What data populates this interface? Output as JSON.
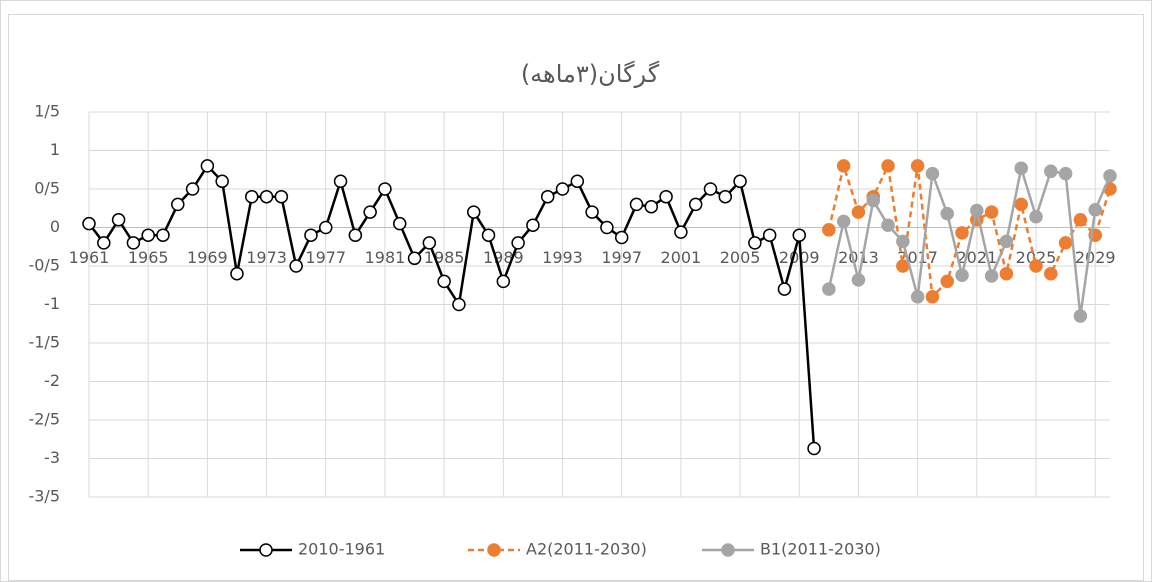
{
  "chart_data": {
    "type": "line",
    "title": "گرگان(۳ماهه)",
    "x": [
      1961,
      1962,
      1963,
      1964,
      1965,
      1966,
      1967,
      1968,
      1969,
      1970,
      1971,
      1972,
      1973,
      1974,
      1975,
      1976,
      1977,
      1978,
      1979,
      1980,
      1981,
      1982,
      1983,
      1984,
      1985,
      1986,
      1987,
      1988,
      1989,
      1990,
      1991,
      1992,
      1993,
      1994,
      1995,
      1996,
      1997,
      1998,
      1999,
      2000,
      2001,
      2002,
      2003,
      2004,
      2005,
      2006,
      2007,
      2008,
      2009,
      2010,
      2011,
      2012,
      2013,
      2014,
      2015,
      2016,
      2017,
      2018,
      2019,
      2020,
      2021,
      2022,
      2023,
      2024,
      2025,
      2026,
      2027,
      2028,
      2029,
      2030
    ],
    "series": [
      {
        "name": "2010-1961",
        "color": "#000000",
        "values": [
          0.05,
          -0.2,
          0.1,
          -0.2,
          -0.1,
          -0.1,
          0.3,
          0.5,
          0.8,
          0.6,
          -0.6,
          0.4,
          0.4,
          0.4,
          -0.5,
          -0.1,
          0,
          0.6,
          -0.1,
          0.2,
          0.5,
          0.05,
          -0.4,
          -0.2,
          -0.7,
          -1.0,
          0.2,
          -0.1,
          -0.7,
          -0.2,
          0.03,
          0.4,
          0.5,
          0.6,
          0.2,
          0,
          -0.13,
          0.3,
          0.27,
          0.4,
          -0.06,
          0.3,
          0.5,
          0.4,
          0.6,
          -0.2,
          -0.1,
          -0.8,
          -0.1,
          -2.87,
          null,
          null,
          null,
          null,
          null,
          null,
          null,
          null,
          null,
          null,
          null,
          null,
          null,
          null,
          null,
          null,
          null,
          null,
          null,
          null
        ]
      },
      {
        "name": "A2(2011-2030)",
        "color": "#ed7d31",
        "values": [
          null,
          null,
          null,
          null,
          null,
          null,
          null,
          null,
          null,
          null,
          null,
          null,
          null,
          null,
          null,
          null,
          null,
          null,
          null,
          null,
          null,
          null,
          null,
          null,
          null,
          null,
          null,
          null,
          null,
          null,
          null,
          null,
          null,
          null,
          null,
          null,
          null,
          null,
          null,
          null,
          null,
          null,
          null,
          null,
          null,
          null,
          null,
          null,
          null,
          null,
          -0.03,
          0.8,
          0.2,
          0.4,
          0.8,
          -0.5,
          0.8,
          -0.9,
          -0.7,
          -0.07,
          0.1,
          0.2,
          -0.6,
          0.3,
          -0.5,
          -0.6,
          -0.2,
          0.1,
          -0.1,
          0.5
        ]
      },
      {
        "name": "B1(2011-2030)",
        "color": "#a5a5a5",
        "values": [
          null,
          null,
          null,
          null,
          null,
          null,
          null,
          null,
          null,
          null,
          null,
          null,
          null,
          null,
          null,
          null,
          null,
          null,
          null,
          null,
          null,
          null,
          null,
          null,
          null,
          null,
          null,
          null,
          null,
          null,
          null,
          null,
          null,
          null,
          null,
          null,
          null,
          null,
          null,
          null,
          null,
          null,
          null,
          null,
          null,
          null,
          null,
          null,
          null,
          null,
          -0.8,
          0.08,
          -0.68,
          0.35,
          0.03,
          -0.18,
          -0.9,
          0.7,
          0.18,
          -0.62,
          0.22,
          -0.63,
          -0.18,
          0.77,
          0.14,
          0.73,
          0.7,
          -1.15,
          0.23,
          0.67
        ]
      }
    ],
    "xlim": [
      1961,
      2030
    ],
    "xticks": [
      1961,
      1965,
      1969,
      1973,
      1977,
      1981,
      1985,
      1989,
      1993,
      1997,
      2001,
      2005,
      2009,
      2013,
      2017,
      2021,
      2025,
      2029
    ],
    "ylim": [
      -3.5,
      1.5
    ],
    "yticks": [
      {
        "value": -3.5,
        "label": "-3/5"
      },
      -3,
      {
        "value": -2.5,
        "label": "-2/5"
      },
      -2,
      {
        "value": -1.5,
        "label": "-1/5"
      },
      -1,
      {
        "value": -0.5,
        "label": "-0/5"
      },
      0,
      {
        "value": 0.5,
        "label": "0/5"
      },
      1,
      {
        "value": 1.5,
        "label": "1/5"
      }
    ],
    "grid": true,
    "legend": "bottom"
  }
}
